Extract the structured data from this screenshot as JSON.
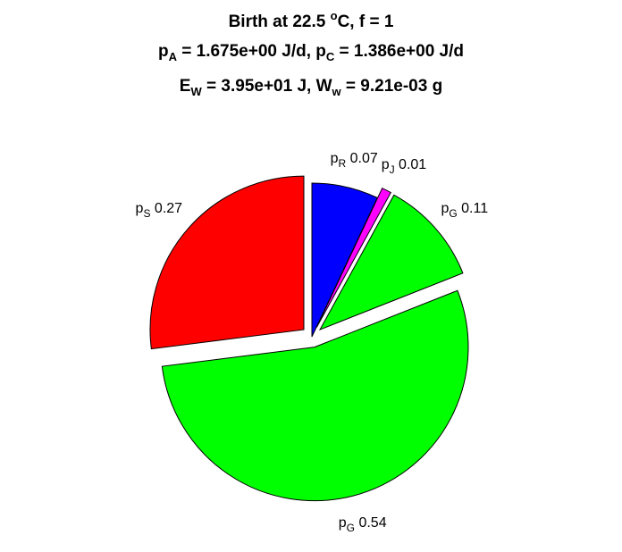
{
  "header": {
    "line1": {
      "prefix": "Birth at 22.5 ",
      "sup": "o",
      "suffix": "C, f = 1"
    },
    "line2": {
      "a_sym": "p",
      "a_sub": "A",
      "a_val": " = 1.675e+00 J/d, ",
      "c_sym": "p",
      "c_sub": "C",
      "c_val": " = 1.386e+00 J/d"
    },
    "line3": {
      "e_sym": "E",
      "e_sub": "W",
      "e_val": " = 3.95e+01 J, ",
      "w_sym": "W",
      "w_sub": "w",
      "w_val": " = 9.21e-03 g"
    }
  },
  "chart_data": {
    "type": "pie",
    "title": "Birth at 22.5 oC, f = 1",
    "slices": [
      {
        "sym": "p",
        "sub": "R",
        "value_label": "0.07",
        "value": 0.07,
        "color": "#0000ff",
        "exploded": false
      },
      {
        "sym": "p",
        "sub": "J",
        "value_label": "0.01",
        "value": 0.01,
        "color": "#ff00ff",
        "exploded": true
      },
      {
        "sym": "p",
        "sub": "G",
        "value_label": "0.11",
        "value": 0.11,
        "color": "#00ff00",
        "exploded": true
      },
      {
        "sym": "p",
        "sub": "G",
        "value_label": "0.54",
        "value": 0.54,
        "color": "#00ff00",
        "exploded": true
      },
      {
        "sym": "p",
        "sub": "S",
        "value_label": "0.27",
        "value": 0.27,
        "color": "#ff0000",
        "exploded": true
      }
    ]
  }
}
